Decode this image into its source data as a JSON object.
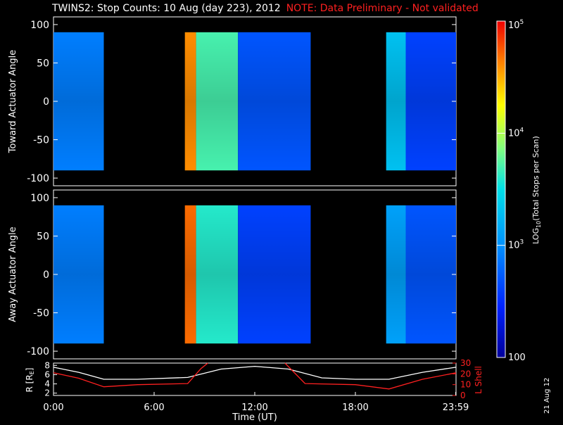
{
  "title": "TWINS2: Stop Counts: 10 Aug (day 223), 2012",
  "note": "NOTE: Data Preliminary - Not validated",
  "date_stamp": "21 Aug 12",
  "chart_data": [
    {
      "type": "heatmap",
      "ylabel": "Toward Actuator Angle",
      "ylim": [
        -110,
        110
      ],
      "yticks": [
        -100,
        -50,
        0,
        50,
        100
      ],
      "xlim_hours": [
        0,
        24
      ],
      "data_intervals_ut": [
        [
          "00:00",
          "03:00"
        ],
        [
          "07:50",
          "15:20"
        ],
        [
          "19:50",
          "24:00"
        ]
      ],
      "approx_log10_counts_by_interval": [
        {
          "start": "00:00",
          "end": "03:00",
          "level": 2.9
        },
        {
          "start": "07:50",
          "end": "08:30",
          "level": 4.6
        },
        {
          "start": "08:30",
          "end": "11:00",
          "level": 3.7
        },
        {
          "start": "11:00",
          "end": "15:20",
          "level": 2.7
        },
        {
          "start": "19:50",
          "end": "21:00",
          "level": 3.3
        },
        {
          "start": "21:00",
          "end": "24:00",
          "level": 2.6
        }
      ]
    },
    {
      "type": "heatmap",
      "ylabel": "Away Actuator Angle",
      "ylim": [
        -110,
        110
      ],
      "yticks": [
        -100,
        -50,
        0,
        50,
        100
      ],
      "xlim_hours": [
        0,
        24
      ],
      "data_intervals_ut": [
        [
          "00:00",
          "03:00"
        ],
        [
          "07:50",
          "15:20"
        ],
        [
          "19:50",
          "24:00"
        ]
      ],
      "approx_log10_counts_by_interval": [
        {
          "start": "00:00",
          "end": "03:00",
          "level": 2.9
        },
        {
          "start": "07:50",
          "end": "08:30",
          "level": 4.7
        },
        {
          "start": "08:30",
          "end": "11:00",
          "level": 3.6
        },
        {
          "start": "11:00",
          "end": "15:20",
          "level": 2.6
        },
        {
          "start": "19:50",
          "end": "21:00",
          "level": 3.1
        },
        {
          "start": "21:00",
          "end": "24:00",
          "level": 2.7
        }
      ]
    },
    {
      "type": "line",
      "ylabel": "R [R",
      "ylabel_sub": "E",
      "ylabel_end": "]",
      "y2label": "L Shell",
      "ylim": [
        1.5,
        8.5
      ],
      "yticks": [
        2,
        4,
        6,
        8
      ],
      "y2lim": [
        0,
        30
      ],
      "y2ticks": [
        0,
        10,
        20,
        30
      ],
      "xlabel": "Time (UT)",
      "xticks": [
        "0:00",
        "6:00",
        "12:00",
        "18:00",
        "23:59"
      ],
      "series": [
        {
          "color": "#ffffff",
          "x_hours": [
            0,
            1.5,
            3,
            5,
            8,
            10,
            12,
            14,
            16,
            18,
            20,
            22,
            24
          ],
          "values": [
            7.6,
            6.5,
            5.0,
            5.0,
            5.4,
            7.2,
            7.8,
            7.2,
            5.3,
            5.0,
            5.0,
            6.5,
            7.6
          ]
        },
        {
          "color": "#ff2020",
          "x_hours": [
            0,
            1.5,
            3,
            5,
            8,
            8.8,
            9.2
          ],
          "values": [
            21,
            16,
            8,
            10,
            11,
            25,
            32
          ]
        },
        {
          "color": "#ff2020",
          "x_hours": [
            13.8,
            15,
            18,
            20,
            22,
            24
          ],
          "values": [
            30,
            11,
            10,
            6,
            15,
            21
          ]
        }
      ]
    }
  ],
  "colorbar": {
    "label": "LOG",
    "label_sub": "10",
    "label_end": "(Total Stops per Scan)",
    "ticks": [
      {
        "exp": 2,
        "base": "",
        "sup": "",
        "text": "100"
      },
      {
        "exp": 3,
        "base": "10",
        "sup": "3",
        "text": ""
      },
      {
        "exp": 4,
        "base": "10",
        "sup": "4",
        "text": ""
      },
      {
        "exp": 5,
        "base": "10",
        "sup": "5",
        "text": ""
      }
    ],
    "range_exp": [
      2,
      5
    ]
  }
}
